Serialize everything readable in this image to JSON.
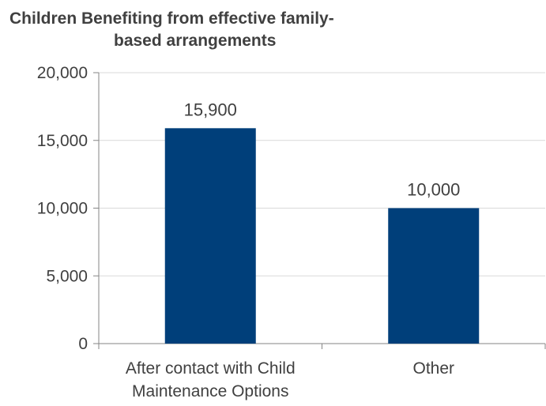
{
  "chart_data": {
    "type": "bar",
    "title_lines": [
      "Children Benefiting from effective family-",
      "based arrangements"
    ],
    "categories": [
      [
        "After contact with Child",
        "Maintenance Options"
      ],
      [
        "Other"
      ]
    ],
    "values": [
      15900,
      10000
    ],
    "data_labels": [
      "15,900",
      "10,000"
    ],
    "yticks": [
      0,
      5000,
      10000,
      15000,
      20000
    ],
    "ytick_labels": [
      "0",
      "5,000",
      "10,000",
      "15,000",
      "20,000"
    ],
    "ylim": [
      0,
      20000
    ],
    "xlabel": "",
    "ylabel": "",
    "grid": true,
    "legend": false,
    "bar_color": "#003f7a",
    "grid_color": "#d9d9d9",
    "axis_color": "#868686",
    "text_color": "#404040"
  }
}
